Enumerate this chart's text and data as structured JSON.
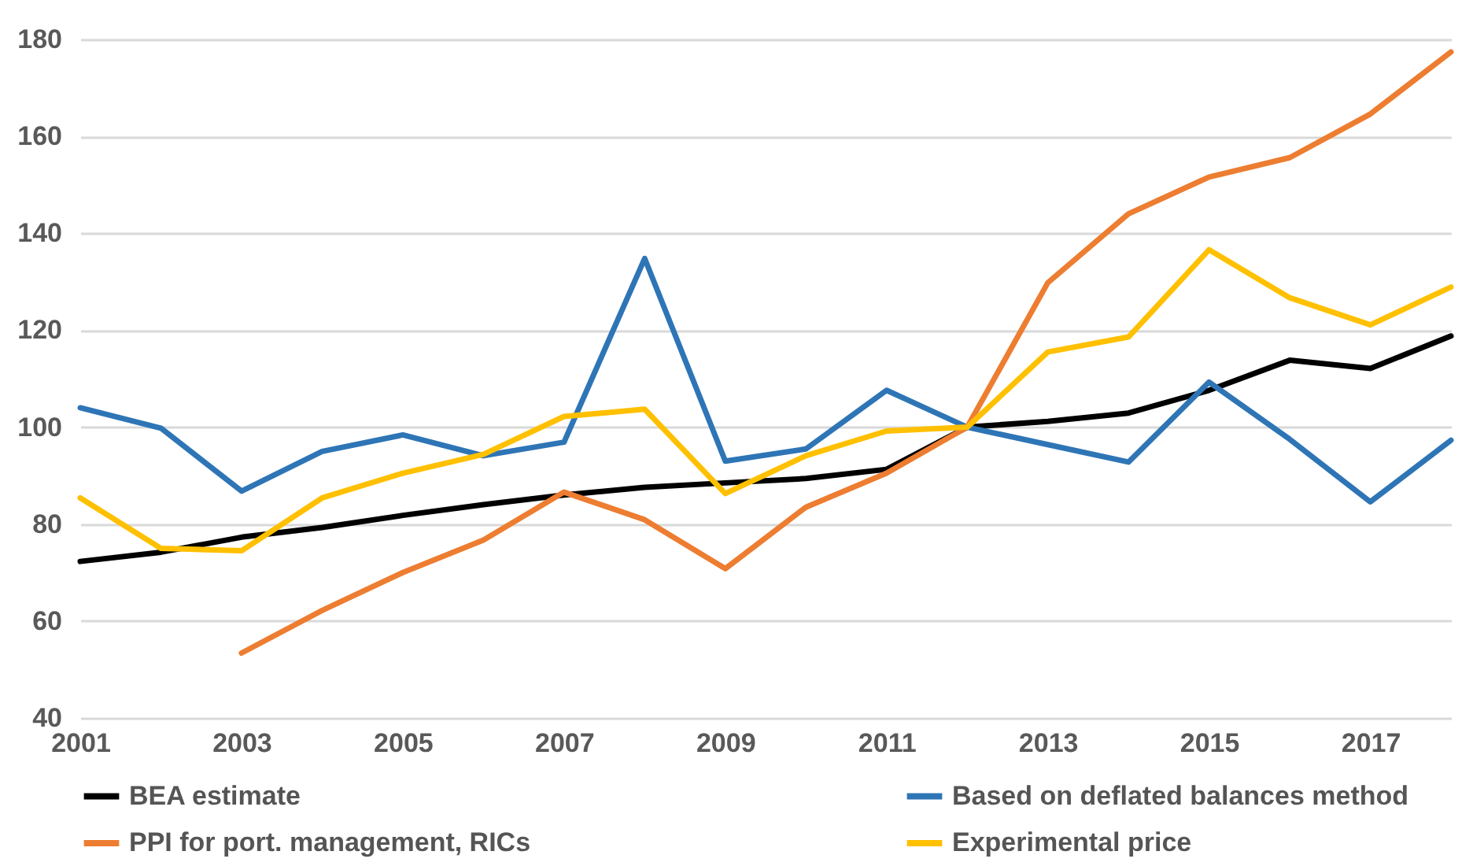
{
  "chart_data": {
    "type": "line",
    "x": [
      2001,
      2002,
      2003,
      2004,
      2005,
      2006,
      2007,
      2008,
      2009,
      2010,
      2011,
      2012,
      2013,
      2014,
      2015,
      2016,
      2017,
      2018
    ],
    "series": [
      {
        "name": "BEA estimate",
        "color": "#000000",
        "values": [
          72.3,
          74.2,
          77.3,
          79.3,
          81.8,
          84,
          86,
          87.6,
          88.5,
          89.4,
          91.3,
          100,
          101.2,
          102.9,
          107.6,
          113.8,
          112.1,
          118.8
        ]
      },
      {
        "name": "Based on deflated balances method",
        "color": "#2e75b6",
        "values": [
          104,
          99.8,
          86.8,
          95,
          98.4,
          94.1,
          96.9,
          134.8,
          93,
          95.5,
          107.6,
          100,
          96.4,
          92.8,
          109.3,
          97.5,
          84.6,
          97.3
        ]
      },
      {
        "name": "PPI for port. management, RICs",
        "color": "#ed7d31",
        "values": [
          null,
          null,
          53.4,
          62.2,
          70,
          76.7,
          86.6,
          80.9,
          70.8,
          83.5,
          90.5,
          100,
          129.8,
          144,
          151.6,
          155.6,
          164.6,
          177.4
        ]
      },
      {
        "name": "Experimental price",
        "color": "#ffc000",
        "values": [
          85.4,
          75,
          74.5,
          85.4,
          90.5,
          94.4,
          102.2,
          103.7,
          86.3,
          94.1,
          99.2,
          100,
          115.5,
          118.6,
          136.6,
          126.7,
          121.1,
          128.9
        ]
      }
    ],
    "xlim": [
      2001,
      2018
    ],
    "xticks": [
      2001,
      2003,
      2005,
      2007,
      2009,
      2011,
      2013,
      2015,
      2017
    ],
    "ylim": [
      40,
      180
    ],
    "yticks": [
      40,
      60,
      80,
      100,
      120,
      140,
      160,
      180
    ],
    "grid": "y",
    "legend": "bottom"
  }
}
